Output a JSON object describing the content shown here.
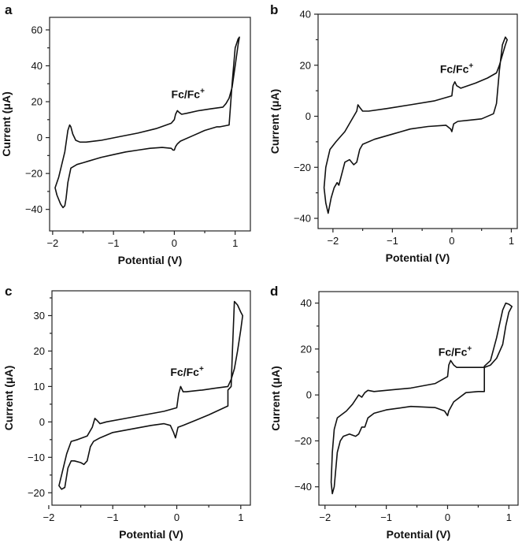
{
  "chart_data": [
    {
      "panel": "a",
      "type": "line",
      "xlabel": "Potential (V)",
      "ylabel": "Current (μA)",
      "xlim": [
        -2.05,
        1.25
      ],
      "ylim": [
        -52,
        67
      ],
      "xticks": [
        -2,
        -1,
        0,
        1
      ],
      "yticks": [
        -40,
        -20,
        0,
        20,
        40,
        60
      ],
      "annotation": {
        "text": "Fc/Fc",
        "sup": "+",
        "x": -0.05,
        "y": 22
      },
      "series": [
        {
          "name": "cyclic voltammogram",
          "x": [
            0.75,
            0.9,
            0.95,
            1.0,
            1.05,
            1.07,
            1.05,
            1.0,
            0.95,
            0.9,
            0.85,
            0.8,
            0.6,
            0.4,
            0.2,
            0.12,
            0.08,
            0.05,
            0.02,
            0.0,
            -0.05,
            -0.3,
            -0.6,
            -0.9,
            -1.2,
            -1.45,
            -1.55,
            -1.62,
            -1.67,
            -1.7,
            -1.72,
            -1.75,
            -1.8,
            -1.9,
            -1.96,
            -1.93,
            -1.87,
            -1.83,
            -1.8,
            -1.78,
            -1.75,
            -1.7,
            -1.6,
            -1.5,
            -1.4,
            -1.3,
            -1.2,
            -1.0,
            -0.8,
            -0.6,
            -0.4,
            -0.2,
            -0.05,
            -0.02,
            0.0,
            0.02,
            0.05,
            0.1,
            0.3,
            0.5,
            0.7,
            0.75
          ],
          "y": [
            6.0,
            7.0,
            30.0,
            50.0,
            55.0,
            56.0,
            52.0,
            40.0,
            28.0,
            22.0,
            19.0,
            17.0,
            16.0,
            15.0,
            13.5,
            13.0,
            14.0,
            15.0,
            13.0,
            10.0,
            8.0,
            5.0,
            2.5,
            0.5,
            -1.5,
            -2.5,
            -2.5,
            -1.5,
            2.0,
            6.0,
            7.0,
            4.0,
            -8.0,
            -22.0,
            -28.0,
            -32.0,
            -37.0,
            -39.0,
            -38.0,
            -34.0,
            -25.0,
            -17.0,
            -15.0,
            -14.0,
            -13.0,
            -12.0,
            -11.0,
            -9.5,
            -8.0,
            -7.0,
            -6.0,
            -5.5,
            -6.0,
            -7.0,
            -7.0,
            -5.0,
            -3.5,
            -2.0,
            1.0,
            4.0,
            6.0,
            6.0
          ]
        }
      ]
    },
    {
      "panel": "b",
      "type": "line",
      "xlabel": "Potential (V)",
      "ylabel": "Current (μA)",
      "xlim": [
        -2.25,
        1.1
      ],
      "ylim": [
        -44,
        40
      ],
      "xticks": [
        -2,
        -1,
        0,
        1
      ],
      "yticks": [
        -40,
        -20,
        0,
        20,
        40
      ],
      "annotation": {
        "text": "Fc/Fc",
        "sup": "+",
        "x": -0.2,
        "y": 17
      },
      "series": [
        {
          "name": "cyclic voltammogram",
          "x": [
            0.7,
            0.75,
            0.8,
            0.85,
            0.9,
            0.93,
            0.9,
            0.85,
            0.8,
            0.75,
            0.6,
            0.4,
            0.15,
            0.08,
            0.05,
            0.02,
            0.0,
            -0.3,
            -0.7,
            -1.1,
            -1.4,
            -1.5,
            -1.55,
            -1.58,
            -1.6,
            -1.7,
            -1.8,
            -1.95,
            -2.05,
            -2.12,
            -2.15,
            -2.12,
            -2.08,
            -2.03,
            -1.98,
            -1.93,
            -1.9,
            -1.8,
            -1.72,
            -1.65,
            -1.6,
            -1.55,
            -1.5,
            -1.3,
            -1.0,
            -0.7,
            -0.4,
            -0.1,
            -0.02,
            0.0,
            0.03,
            0.1,
            0.3,
            0.5,
            0.7
          ],
          "y": [
            1.0,
            5.0,
            18.0,
            28.0,
            31.0,
            30.0,
            28.0,
            24.0,
            20.0,
            17.0,
            15.0,
            13.0,
            11.0,
            12.0,
            13.5,
            12.0,
            8.0,
            6.0,
            4.5,
            3.0,
            2.0,
            2.0,
            3.5,
            4.5,
            2.0,
            -2.0,
            -6.0,
            -10.0,
            -13.0,
            -20.0,
            -28.0,
            -34.0,
            -38.0,
            -32.0,
            -28.0,
            -26.0,
            -27.0,
            -18.0,
            -17.0,
            -19.0,
            -18.0,
            -13.0,
            -11.0,
            -9.0,
            -7.0,
            -5.0,
            -4.0,
            -3.5,
            -5.0,
            -6.0,
            -3.0,
            -2.0,
            -1.5,
            -1.0,
            1.0
          ]
        }
      ]
    },
    {
      "panel": "c",
      "type": "line",
      "xlabel": "Potential (V)",
      "ylabel": "Current (μA)",
      "xlim": [
        -1.95,
        1.15
      ],
      "ylim": [
        -23.5,
        37
      ],
      "xticks": [
        -2,
        -1,
        0,
        1
      ],
      "yticks": [
        -20,
        -10,
        0,
        10,
        20,
        30
      ],
      "annotation": {
        "text": "Fc/Fc",
        "sup": "+",
        "x": -0.1,
        "y": 13
      },
      "series": [
        {
          "name": "cyclic voltammogram",
          "x": [
            0.8,
            0.85,
            0.87,
            0.9,
            0.95,
            1.0,
            1.03,
            1.0,
            0.95,
            0.9,
            0.85,
            0.8,
            0.6,
            0.4,
            0.15,
            0.1,
            0.06,
            0.03,
            0.0,
            -0.2,
            -0.5,
            -0.8,
            -1.1,
            -1.2,
            -1.25,
            -1.28,
            -1.32,
            -1.4,
            -1.55,
            -1.65,
            -1.72,
            -1.8,
            -1.84,
            -1.8,
            -1.75,
            -1.7,
            -1.65,
            -1.6,
            -1.5,
            -1.45,
            -1.4,
            -1.35,
            -1.3,
            -1.2,
            -1.0,
            -0.7,
            -0.4,
            -0.2,
            -0.1,
            -0.05,
            -0.02,
            0.0,
            0.02,
            0.1,
            0.3,
            0.5,
            0.8
          ],
          "y": [
            9.0,
            10.0,
            20.0,
            34.0,
            33.0,
            31.0,
            30.0,
            26.0,
            20.0,
            15.0,
            12.0,
            10.0,
            9.5,
            9.0,
            8.5,
            8.5,
            10.0,
            8.0,
            4.0,
            3.0,
            2.0,
            1.0,
            0.0,
            -0.5,
            0.5,
            1.0,
            -1.5,
            -4.0,
            -5.0,
            -5.5,
            -9.0,
            -15.0,
            -18.0,
            -19.0,
            -18.5,
            -13.0,
            -11.0,
            -11.0,
            -11.5,
            -12.0,
            -11.0,
            -7.0,
            -5.5,
            -4.5,
            -3.0,
            -2.0,
            -1.0,
            -0.5,
            -1.0,
            -3.0,
            -4.5,
            -3.0,
            -1.5,
            -1.0,
            0.5,
            2.0,
            4.5
          ]
        }
      ]
    },
    {
      "panel": "d",
      "type": "line",
      "xlabel": "Potential (V)",
      "ylabel": "Current (μA)",
      "xlim": [
        -2.1,
        1.15
      ],
      "ylim": [
        -48,
        45
      ],
      "xticks": [
        -2,
        -1,
        0,
        1
      ],
      "yticks": [
        -40,
        -20,
        0,
        20,
        40
      ],
      "annotation": {
        "text": "Fc/Fc",
        "sup": "+",
        "x": -0.15,
        "y": 17
      },
      "series": [
        {
          "name": "cyclic voltammogram",
          "x": [
            0.6,
            0.7,
            0.8,
            0.9,
            0.95,
            1.0,
            1.05,
            1.0,
            0.95,
            0.9,
            0.8,
            0.7,
            0.6,
            0.4,
            0.15,
            0.1,
            0.05,
            0.02,
            0.0,
            -0.2,
            -0.6,
            -1.0,
            -1.2,
            -1.3,
            -1.35,
            -1.4,
            -1.45,
            -1.55,
            -1.65,
            -1.75,
            -1.8,
            -1.85,
            -1.88,
            -1.9,
            -1.88,
            -1.85,
            -1.8,
            -1.75,
            -1.7,
            -1.6,
            -1.5,
            -1.45,
            -1.4,
            -1.35,
            -1.3,
            -1.2,
            -1.0,
            -0.6,
            -0.2,
            -0.05,
            0.0,
            0.02,
            0.1,
            0.3,
            0.5,
            0.6
          ],
          "y": [
            12.5,
            15.0,
            25.0,
            37.0,
            40.0,
            39.5,
            38.5,
            36.0,
            30.0,
            22.0,
            16.0,
            13.0,
            12.0,
            12.0,
            12.0,
            13.0,
            15.0,
            13.0,
            8.0,
            5.0,
            3.0,
            2.0,
            1.5,
            2.0,
            1.0,
            -1.0,
            0.0,
            -4.0,
            -7.0,
            -9.0,
            -10.0,
            -15.0,
            -25.0,
            -38.0,
            -43.0,
            -40.0,
            -25.0,
            -20.0,
            -18.0,
            -17.0,
            -18.0,
            -17.0,
            -14.0,
            -14.0,
            -10.0,
            -8.0,
            -6.5,
            -5.0,
            -5.5,
            -7.0,
            -9.0,
            -7.0,
            -3.0,
            1.0,
            1.5,
            1.5
          ]
        }
      ]
    }
  ]
}
